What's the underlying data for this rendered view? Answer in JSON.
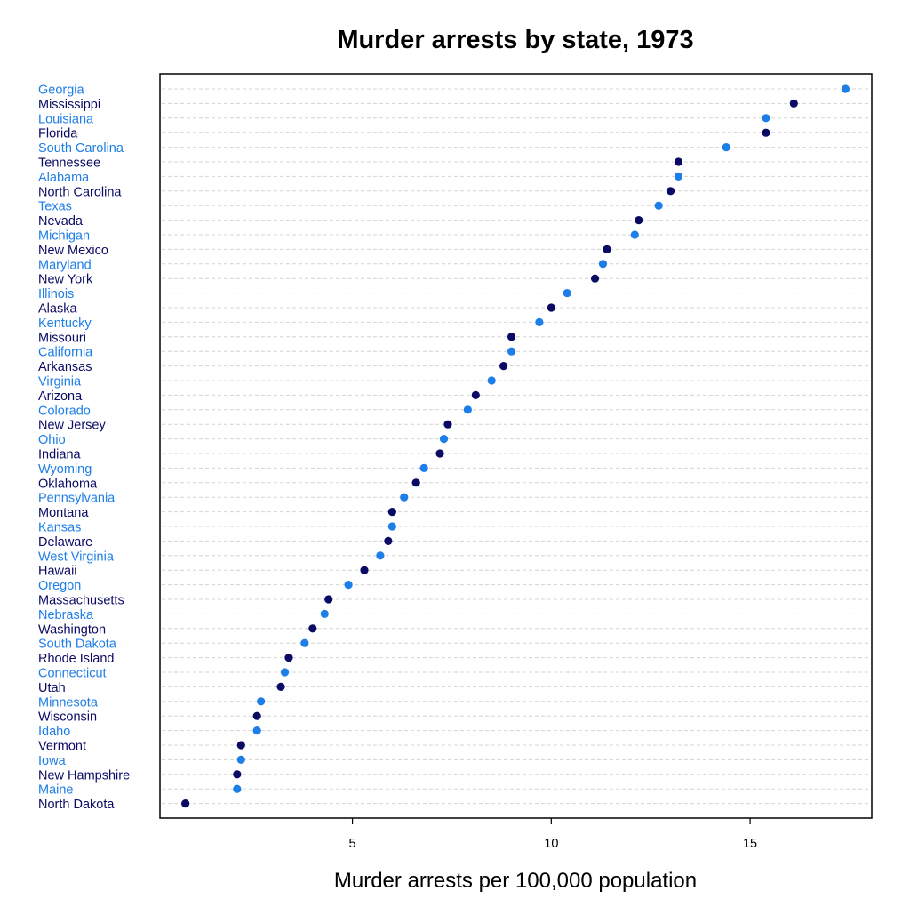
{
  "chart_data": {
    "type": "scatter",
    "title": "Murder arrests by state, 1973",
    "xlabel": "Murder arrests per 100,000 population",
    "ylabel": "",
    "xlim": [
      0.16,
      18.06
    ],
    "xticks": [
      5,
      10,
      15
    ],
    "grid": "dashed horizontal guide lines",
    "colors": {
      "alternate_a": "#1e7ee8",
      "alternate_b": "#0a0a64"
    },
    "categories": [
      "Georgia",
      "Mississippi",
      "Louisiana",
      "Florida",
      "South Carolina",
      "Tennessee",
      "Alabama",
      "North Carolina",
      "Texas",
      "Nevada",
      "Michigan",
      "New Mexico",
      "Maryland",
      "New York",
      "Illinois",
      "Alaska",
      "Kentucky",
      "Missouri",
      "California",
      "Arkansas",
      "Virginia",
      "Arizona",
      "Colorado",
      "New Jersey",
      "Ohio",
      "Indiana",
      "Wyoming",
      "Oklahoma",
      "Pennsylvania",
      "Montana",
      "Kansas",
      "Delaware",
      "West Virginia",
      "Hawaii",
      "Oregon",
      "Massachusetts",
      "Nebraska",
      "Washington",
      "South Dakota",
      "Rhode Island",
      "Connecticut",
      "Utah",
      "Minnesota",
      "Wisconsin",
      "Idaho",
      "Vermont",
      "Iowa",
      "New Hampshire",
      "Maine",
      "North Dakota"
    ],
    "values": [
      17.4,
      16.1,
      15.4,
      15.4,
      14.4,
      13.2,
      13.2,
      13.0,
      12.7,
      12.2,
      12.1,
      11.4,
      11.3,
      11.1,
      10.4,
      10.0,
      9.7,
      9.0,
      9.0,
      8.8,
      8.5,
      8.1,
      7.9,
      7.4,
      7.3,
      7.2,
      6.8,
      6.6,
      6.3,
      6.0,
      6.0,
      5.9,
      5.7,
      5.3,
      4.9,
      4.4,
      4.3,
      4.0,
      3.8,
      3.4,
      3.3,
      3.2,
      2.7,
      2.6,
      2.6,
      2.2,
      2.2,
      2.1,
      2.1,
      0.8
    ]
  }
}
